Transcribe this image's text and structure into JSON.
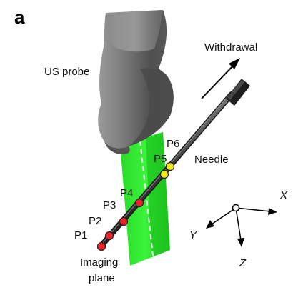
{
  "figure": {
    "panel_letter": "a",
    "probe_label": "US probe",
    "withdrawal_label": "Withdrawal",
    "needle_label": "Needle",
    "imaging_plane_label_line1": "Imaging",
    "imaging_plane_label_line2": "plane",
    "points": [
      {
        "label": "P1",
        "color": "#e8242a"
      },
      {
        "label": "P2",
        "color": "#e8242a"
      },
      {
        "label": "P3",
        "color": "#e8242a"
      },
      {
        "label": "P4",
        "color": "#e8242a"
      },
      {
        "label": "P5",
        "color": "#f2e521"
      },
      {
        "label": "P6",
        "color": "#f2e521"
      }
    ],
    "axes": {
      "x": "X",
      "y": "Y",
      "z": "Z"
    }
  },
  "colors": {
    "imaging_plane": "#22ee22",
    "probe_body": "#6c6c6c",
    "needle": "#3a3a3a"
  }
}
